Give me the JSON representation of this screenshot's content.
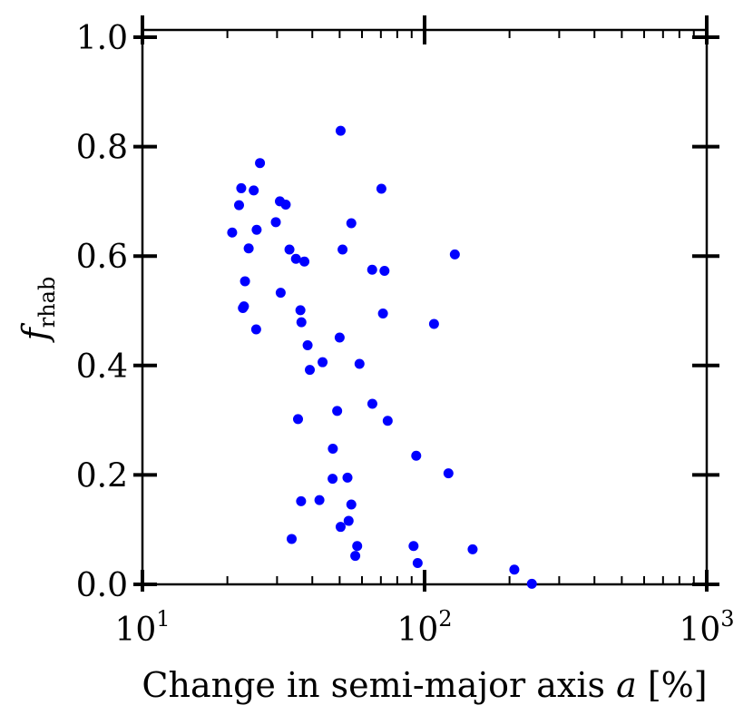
{
  "chart_data": {
    "type": "scatter",
    "xscale": "log",
    "xlim": [
      10,
      1000
    ],
    "ylim": [
      0.0,
      1.0
    ],
    "xlabel": "Change in semi-major axis a [%]",
    "ylabel": "f_rhab",
    "xticks": [
      {
        "value": 10,
        "base": "10",
        "exp": "1"
      },
      {
        "value": 100,
        "base": "10",
        "exp": "2"
      },
      {
        "value": 1000,
        "base": "10",
        "exp": "3"
      }
    ],
    "yticks": [
      "0.0",
      "0.2",
      "0.4",
      "0.6",
      "0.8",
      "1.0"
    ],
    "grid": false,
    "marker_color": "#0000ff",
    "points": [
      [
        20.8,
        0.643
      ],
      [
        22.0,
        0.693
      ],
      [
        22.4,
        0.724
      ],
      [
        24.8,
        0.72
      ],
      [
        26.1,
        0.77
      ],
      [
        23.8,
        0.614
      ],
      [
        25.4,
        0.648
      ],
      [
        22.7,
        0.505
      ],
      [
        22.9,
        0.508
      ],
      [
        23.1,
        0.554
      ],
      [
        25.3,
        0.466
      ],
      [
        29.7,
        0.662
      ],
      [
        30.7,
        0.7
      ],
      [
        32.2,
        0.694
      ],
      [
        33.2,
        0.612
      ],
      [
        35.0,
        0.595
      ],
      [
        37.5,
        0.59
      ],
      [
        30.9,
        0.533
      ],
      [
        36.3,
        0.501
      ],
      [
        36.6,
        0.479
      ],
      [
        38.5,
        0.437
      ],
      [
        39.2,
        0.392
      ],
      [
        43.5,
        0.406
      ],
      [
        50.4,
        0.829
      ],
      [
        55.0,
        0.66
      ],
      [
        70.3,
        0.723
      ],
      [
        51.2,
        0.612
      ],
      [
        65.2,
        0.575
      ],
      [
        72.1,
        0.573
      ],
      [
        71.2,
        0.495
      ],
      [
        128.0,
        0.603
      ],
      [
        108.0,
        0.476
      ],
      [
        50.0,
        0.451
      ],
      [
        58.8,
        0.403
      ],
      [
        65.3,
        0.33
      ],
      [
        74.0,
        0.299
      ],
      [
        49.0,
        0.317
      ],
      [
        35.6,
        0.302
      ],
      [
        47.3,
        0.248
      ],
      [
        93.4,
        0.235
      ],
      [
        121.5,
        0.203
      ],
      [
        47.2,
        0.193
      ],
      [
        53.3,
        0.195
      ],
      [
        36.5,
        0.152
      ],
      [
        42.4,
        0.154
      ],
      [
        55.0,
        0.146
      ],
      [
        53.8,
        0.116
      ],
      [
        50.4,
        0.105
      ],
      [
        33.8,
        0.083
      ],
      [
        57.7,
        0.07
      ],
      [
        91.4,
        0.07
      ],
      [
        56.8,
        0.052
      ],
      [
        94.5,
        0.039
      ],
      [
        148.0,
        0.064
      ],
      [
        208.0,
        0.027
      ],
      [
        240.0,
        0.001
      ]
    ]
  }
}
